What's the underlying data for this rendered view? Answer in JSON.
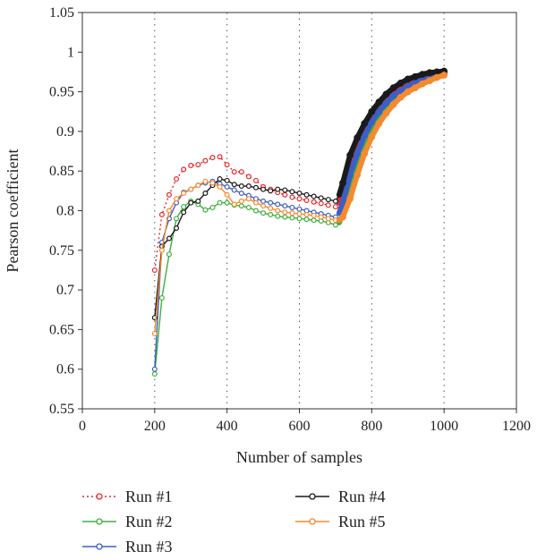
{
  "chart_data": {
    "type": "line",
    "title": "",
    "xlabel": "Number of samples",
    "ylabel": "Pearson coefficient",
    "xlim": [
      0,
      1200
    ],
    "ylim": [
      0.55,
      1.05
    ],
    "x_ticks": [
      0,
      200,
      400,
      600,
      800,
      1000,
      1200
    ],
    "y_ticks": [
      0.55,
      0.6,
      0.65,
      0.7,
      0.75,
      0.8,
      0.85,
      0.9,
      0.95,
      1,
      1.05
    ],
    "x_tick_labels": [
      "0",
      "200",
      "400",
      "600",
      "800",
      "1000",
      "1200"
    ],
    "y_tick_labels": [
      "0.55",
      "0.6",
      "0.65",
      "0.7",
      "0.75",
      "0.8",
      "0.85",
      "0.9",
      "0.95",
      "1",
      "1.05"
    ],
    "grid": "dotted-vertical",
    "legend_position": "bottom",
    "series": [
      {
        "name": "Run #1",
        "color": "#e8262a",
        "style": "dotted",
        "points": [
          [
            200,
            0.725
          ],
          [
            220,
            0.795
          ],
          [
            240,
            0.82
          ],
          [
            260,
            0.84
          ],
          [
            280,
            0.852
          ],
          [
            300,
            0.857
          ],
          [
            320,
            0.858
          ],
          [
            340,
            0.863
          ],
          [
            360,
            0.867
          ],
          [
            380,
            0.868
          ],
          [
            400,
            0.858
          ],
          [
            420,
            0.849
          ],
          [
            440,
            0.849
          ],
          [
            460,
            0.843
          ],
          [
            480,
            0.838
          ],
          [
            500,
            0.83
          ],
          [
            520,
            0.827
          ],
          [
            540,
            0.823
          ],
          [
            560,
            0.82
          ],
          [
            580,
            0.817
          ],
          [
            600,
            0.815
          ],
          [
            620,
            0.813
          ],
          [
            640,
            0.811
          ],
          [
            660,
            0.809
          ],
          [
            680,
            0.807
          ],
          [
            700,
            0.805
          ],
          [
            710,
            0.81
          ],
          [
            720,
            0.823
          ],
          [
            740,
            0.86
          ],
          [
            760,
            0.885
          ],
          [
            780,
            0.905
          ],
          [
            800,
            0.92
          ],
          [
            820,
            0.932
          ],
          [
            840,
            0.942
          ],
          [
            860,
            0.95
          ],
          [
            880,
            0.956
          ],
          [
            900,
            0.961
          ],
          [
            920,
            0.965
          ],
          [
            940,
            0.968
          ],
          [
            960,
            0.971
          ],
          [
            980,
            0.973
          ],
          [
            1000,
            0.975
          ]
        ]
      },
      {
        "name": "Run #2",
        "color": "#3db03d",
        "style": "solid",
        "points": [
          [
            200,
            0.594
          ],
          [
            220,
            0.69
          ],
          [
            240,
            0.745
          ],
          [
            260,
            0.79
          ],
          [
            280,
            0.805
          ],
          [
            300,
            0.812
          ],
          [
            320,
            0.808
          ],
          [
            340,
            0.801
          ],
          [
            360,
            0.804
          ],
          [
            380,
            0.81
          ],
          [
            400,
            0.81
          ],
          [
            420,
            0.807
          ],
          [
            440,
            0.806
          ],
          [
            460,
            0.804
          ],
          [
            480,
            0.8
          ],
          [
            500,
            0.797
          ],
          [
            520,
            0.795
          ],
          [
            540,
            0.793
          ],
          [
            560,
            0.792
          ],
          [
            580,
            0.791
          ],
          [
            600,
            0.79
          ],
          [
            620,
            0.789
          ],
          [
            640,
            0.788
          ],
          [
            660,
            0.787
          ],
          [
            680,
            0.785
          ],
          [
            700,
            0.782
          ],
          [
            710,
            0.785
          ],
          [
            720,
            0.795
          ],
          [
            740,
            0.83
          ],
          [
            760,
            0.862
          ],
          [
            780,
            0.888
          ],
          [
            800,
            0.905
          ],
          [
            820,
            0.918
          ],
          [
            840,
            0.93
          ],
          [
            860,
            0.94
          ],
          [
            880,
            0.947
          ],
          [
            900,
            0.953
          ],
          [
            920,
            0.958
          ],
          [
            940,
            0.962
          ],
          [
            960,
            0.966
          ],
          [
            980,
            0.969
          ],
          [
            1000,
            0.972
          ]
        ]
      },
      {
        "name": "Run #3",
        "color": "#3b5fc7",
        "style": "solid",
        "points": [
          [
            200,
            0.6
          ],
          [
            220,
            0.76
          ],
          [
            240,
            0.79
          ],
          [
            260,
            0.81
          ],
          [
            280,
            0.823
          ],
          [
            300,
            0.827
          ],
          [
            320,
            0.832
          ],
          [
            340,
            0.835
          ],
          [
            360,
            0.837
          ],
          [
            380,
            0.834
          ],
          [
            400,
            0.83
          ],
          [
            420,
            0.826
          ],
          [
            440,
            0.822
          ],
          [
            460,
            0.819
          ],
          [
            480,
            0.815
          ],
          [
            500,
            0.812
          ],
          [
            520,
            0.81
          ],
          [
            540,
            0.808
          ],
          [
            560,
            0.806
          ],
          [
            580,
            0.804
          ],
          [
            600,
            0.802
          ],
          [
            620,
            0.8
          ],
          [
            640,
            0.798
          ],
          [
            660,
            0.796
          ],
          [
            680,
            0.794
          ],
          [
            700,
            0.792
          ],
          [
            710,
            0.797
          ],
          [
            720,
            0.81
          ],
          [
            740,
            0.845
          ],
          [
            760,
            0.872
          ],
          [
            780,
            0.895
          ],
          [
            800,
            0.912
          ],
          [
            820,
            0.925
          ],
          [
            840,
            0.936
          ],
          [
            860,
            0.945
          ],
          [
            880,
            0.951
          ],
          [
            900,
            0.957
          ],
          [
            920,
            0.961
          ],
          [
            940,
            0.965
          ],
          [
            960,
            0.968
          ],
          [
            980,
            0.971
          ],
          [
            1000,
            0.974
          ]
        ]
      },
      {
        "name": "Run #4",
        "color": "#1a1a1a",
        "style": "solid",
        "points": [
          [
            200,
            0.665
          ],
          [
            220,
            0.755
          ],
          [
            240,
            0.765
          ],
          [
            260,
            0.778
          ],
          [
            280,
            0.798
          ],
          [
            300,
            0.81
          ],
          [
            320,
            0.812
          ],
          [
            340,
            0.822
          ],
          [
            360,
            0.832
          ],
          [
            380,
            0.84
          ],
          [
            400,
            0.838
          ],
          [
            420,
            0.833
          ],
          [
            440,
            0.831
          ],
          [
            460,
            0.831
          ],
          [
            480,
            0.829
          ],
          [
            500,
            0.827
          ],
          [
            520,
            0.825
          ],
          [
            540,
            0.827
          ],
          [
            560,
            0.826
          ],
          [
            580,
            0.824
          ],
          [
            600,
            0.822
          ],
          [
            620,
            0.82
          ],
          [
            640,
            0.818
          ],
          [
            660,
            0.816
          ],
          [
            680,
            0.814
          ],
          [
            700,
            0.812
          ],
          [
            710,
            0.82
          ],
          [
            720,
            0.835
          ],
          [
            740,
            0.87
          ],
          [
            760,
            0.892
          ],
          [
            780,
            0.91
          ],
          [
            800,
            0.925
          ],
          [
            820,
            0.937
          ],
          [
            840,
            0.947
          ],
          [
            860,
            0.955
          ],
          [
            880,
            0.961
          ],
          [
            900,
            0.966
          ],
          [
            920,
            0.969
          ],
          [
            940,
            0.972
          ],
          [
            960,
            0.974
          ],
          [
            980,
            0.975
          ],
          [
            1000,
            0.976
          ]
        ]
      },
      {
        "name": "Run #5",
        "color": "#f58a2e",
        "style": "solid",
        "points": [
          [
            200,
            0.645
          ],
          [
            220,
            0.75
          ],
          [
            240,
            0.8
          ],
          [
            260,
            0.815
          ],
          [
            280,
            0.822
          ],
          [
            300,
            0.827
          ],
          [
            320,
            0.832
          ],
          [
            340,
            0.837
          ],
          [
            360,
            0.835
          ],
          [
            380,
            0.83
          ],
          [
            400,
            0.82
          ],
          [
            420,
            0.808
          ],
          [
            440,
            0.812
          ],
          [
            460,
            0.815
          ],
          [
            480,
            0.81
          ],
          [
            500,
            0.806
          ],
          [
            520,
            0.803
          ],
          [
            540,
            0.8
          ],
          [
            560,
            0.798
          ],
          [
            580,
            0.797
          ],
          [
            600,
            0.796
          ],
          [
            620,
            0.795
          ],
          [
            640,
            0.794
          ],
          [
            660,
            0.792
          ],
          [
            680,
            0.79
          ],
          [
            700,
            0.788
          ],
          [
            710,
            0.788
          ],
          [
            720,
            0.792
          ],
          [
            740,
            0.815
          ],
          [
            760,
            0.845
          ],
          [
            780,
            0.872
          ],
          [
            800,
            0.893
          ],
          [
            820,
            0.91
          ],
          [
            840,
            0.923
          ],
          [
            860,
            0.934
          ],
          [
            880,
            0.943
          ],
          [
            900,
            0.95
          ],
          [
            920,
            0.955
          ],
          [
            940,
            0.96
          ],
          [
            960,
            0.964
          ],
          [
            980,
            0.968
          ],
          [
            1000,
            0.971
          ]
        ]
      }
    ]
  }
}
